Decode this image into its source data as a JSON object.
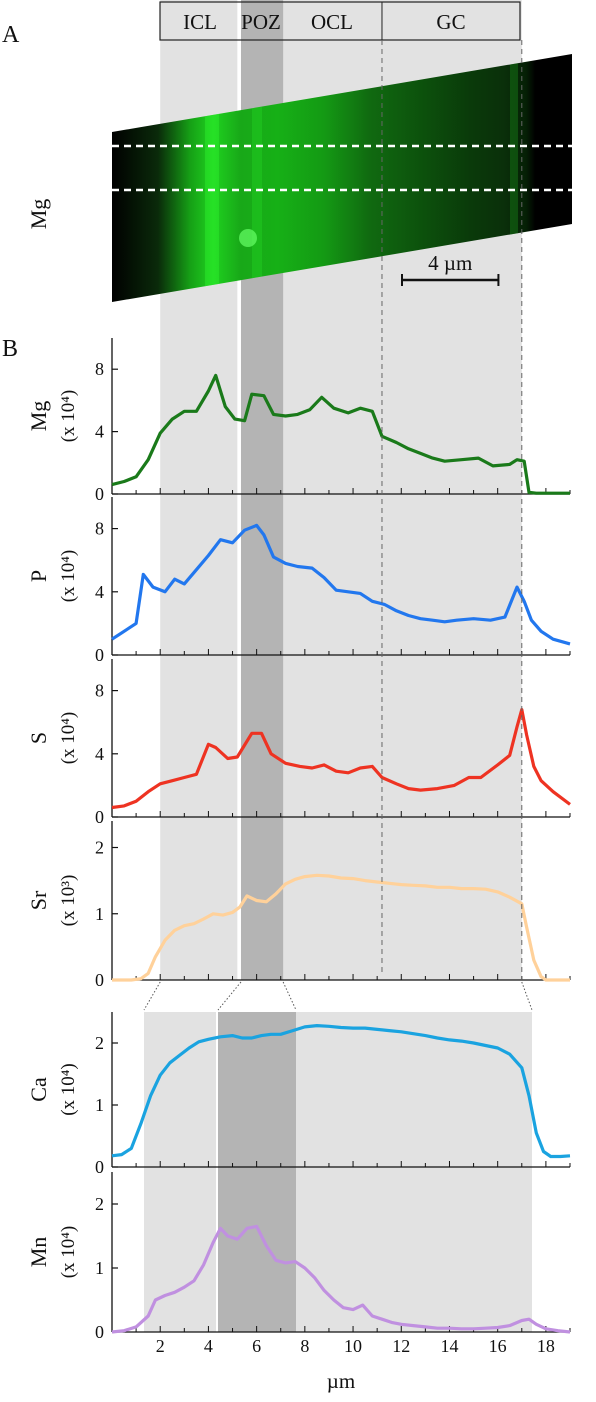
{
  "panel_a_label": "A",
  "panel_b_label": "B",
  "zones": [
    {
      "name": "ICL",
      "x0": 2.0,
      "x1": 5.2
    },
    {
      "name": "POZ",
      "x0": 5.35,
      "x1": 7.1
    },
    {
      "name": "OCL",
      "x0": 7.1,
      "x1": 11.2
    },
    {
      "name": "GC",
      "x0": 11.2,
      "x1": 17.0
    }
  ],
  "map": {
    "element": "Mg",
    "scalebar_label": "4 µm",
    "scalebar_um": 4,
    "color": "#1fcc1f"
  },
  "chart_data": [
    {
      "type": "line",
      "ylabel": "Mg",
      "yunit": "(x 10⁴)",
      "color": "#1a7a1a",
      "xlim": [
        0,
        19
      ],
      "ylim": [
        0,
        10
      ],
      "yticks": [
        0,
        4,
        8
      ],
      "shading": "upper",
      "x": [
        0,
        0.5,
        1,
        1.5,
        2,
        2.5,
        3,
        3.5,
        4,
        4.3,
        4.7,
        5.1,
        5.5,
        5.8,
        6.3,
        6.7,
        7.2,
        7.7,
        8.2,
        8.7,
        9.2,
        9.8,
        10.3,
        10.8,
        11.2,
        11.8,
        12.3,
        12.8,
        13.3,
        13.8,
        14.5,
        15.2,
        15.8,
        16.5,
        16.8,
        17.1,
        17.3,
        17.6,
        18,
        18.5,
        19
      ],
      "y": [
        0.6,
        0.8,
        1.1,
        2.2,
        3.9,
        4.8,
        5.3,
        5.3,
        6.6,
        7.6,
        5.6,
        4.8,
        4.7,
        6.4,
        6.3,
        5.1,
        5.0,
        5.1,
        5.4,
        6.2,
        5.5,
        5.2,
        5.5,
        5.3,
        3.7,
        3.3,
        2.9,
        2.6,
        2.3,
        2.1,
        2.2,
        2.3,
        1.8,
        1.9,
        2.2,
        2.1,
        0.1,
        0.05,
        0.05,
        0.05,
        0.05
      ]
    },
    {
      "type": "line",
      "ylabel": "P",
      "yunit": "(x 10⁴)",
      "color": "#2277ee",
      "xlim": [
        0,
        19
      ],
      "ylim": [
        0,
        10
      ],
      "yticks": [
        0,
        4,
        8
      ],
      "shading": "upper",
      "x": [
        0,
        0.5,
        1,
        1.3,
        1.7,
        2.2,
        2.6,
        3,
        3.5,
        4,
        4.5,
        5,
        5.5,
        6,
        6.3,
        6.7,
        7.2,
        7.7,
        8.3,
        8.8,
        9.3,
        9.8,
        10.3,
        10.8,
        11.3,
        11.8,
        12.3,
        12.8,
        13.3,
        13.8,
        14.3,
        15,
        15.7,
        16.3,
        16.8,
        17.1,
        17.4,
        17.8,
        18.3,
        19
      ],
      "y": [
        1.0,
        1.5,
        2.0,
        5.1,
        4.3,
        4.0,
        4.8,
        4.5,
        5.4,
        6.3,
        7.3,
        7.1,
        7.9,
        8.2,
        7.6,
        6.2,
        5.8,
        5.6,
        5.5,
        4.9,
        4.1,
        4.0,
        3.9,
        3.4,
        3.2,
        2.8,
        2.5,
        2.3,
        2.2,
        2.1,
        2.2,
        2.3,
        2.2,
        2.4,
        4.3,
        3.4,
        2.2,
        1.5,
        1.0,
        0.7
      ]
    },
    {
      "type": "line",
      "ylabel": "S",
      "yunit": "(x 10⁴)",
      "color": "#ee3322",
      "xlim": [
        0,
        19
      ],
      "ylim": [
        0,
        10
      ],
      "yticks": [
        0,
        4,
        8
      ],
      "shading": "upper",
      "x": [
        0,
        0.5,
        1,
        1.5,
        2,
        2.5,
        3,
        3.5,
        4,
        4.3,
        4.8,
        5.2,
        5.8,
        6.2,
        6.6,
        7.2,
        7.8,
        8.3,
        8.8,
        9.3,
        9.8,
        10.3,
        10.8,
        11.2,
        11.8,
        12.3,
        12.8,
        13.5,
        14.2,
        14.8,
        15.3,
        16,
        16.5,
        16.8,
        17,
        17.2,
        17.5,
        17.8,
        18.3,
        19
      ],
      "y": [
        0.6,
        0.7,
        1.0,
        1.6,
        2.1,
        2.3,
        2.5,
        2.7,
        4.6,
        4.4,
        3.7,
        3.8,
        5.3,
        5.3,
        4.0,
        3.4,
        3.2,
        3.1,
        3.3,
        2.9,
        2.8,
        3.1,
        3.2,
        2.5,
        2.1,
        1.8,
        1.7,
        1.8,
        2.0,
        2.5,
        2.5,
        3.3,
        3.9,
        5.7,
        6.8,
        5.2,
        3.2,
        2.3,
        1.6,
        0.8
      ]
    },
    {
      "type": "line",
      "ylabel": "Sr",
      "yunit": "(x 10³)",
      "color": "#ffd19a",
      "xlim": [
        0,
        19
      ],
      "ylim": [
        0,
        2.4
      ],
      "yticks": [
        0,
        1,
        2
      ],
      "shading": "upper",
      "x": [
        0,
        0.8,
        1.2,
        1.5,
        1.8,
        2.2,
        2.6,
        3,
        3.4,
        3.8,
        4.2,
        4.6,
        5,
        5.3,
        5.6,
        6,
        6.4,
        6.8,
        7.2,
        7.6,
        8,
        8.5,
        9,
        9.5,
        10,
        10.5,
        11,
        11.5,
        12,
        12.5,
        13,
        13.5,
        14,
        14.5,
        15,
        15.5,
        16,
        16.5,
        17,
        17.2,
        17.5,
        17.8,
        18,
        19
      ],
      "y": [
        0,
        0,
        0.02,
        0.1,
        0.35,
        0.6,
        0.75,
        0.82,
        0.85,
        0.92,
        1.0,
        0.98,
        1.02,
        1.1,
        1.27,
        1.2,
        1.18,
        1.3,
        1.45,
        1.52,
        1.56,
        1.58,
        1.57,
        1.54,
        1.53,
        1.5,
        1.48,
        1.46,
        1.44,
        1.43,
        1.42,
        1.4,
        1.4,
        1.38,
        1.38,
        1.37,
        1.33,
        1.25,
        1.15,
        0.8,
        0.3,
        0.05,
        0,
        0
      ]
    },
    {
      "type": "line",
      "ylabel": "Ca",
      "yunit": "(x 10⁴)",
      "color": "#1aa3e0",
      "xlim": [
        0,
        19
      ],
      "ylim": [
        0,
        2.5
      ],
      "yticks": [
        0,
        1,
        2
      ],
      "shading": "lower",
      "x": [
        0,
        0.4,
        0.8,
        1.2,
        1.6,
        2,
        2.4,
        2.8,
        3.2,
        3.6,
        4,
        4.5,
        5,
        5.4,
        5.8,
        6.2,
        6.6,
        7,
        7.5,
        8,
        8.5,
        9,
        9.5,
        10,
        10.5,
        11,
        11.5,
        12,
        12.5,
        13,
        13.5,
        14,
        14.5,
        15,
        15.5,
        16,
        16.5,
        17,
        17.3,
        17.6,
        17.9,
        18.2,
        18.6,
        19
      ],
      "y": [
        0.18,
        0.2,
        0.3,
        0.7,
        1.15,
        1.48,
        1.68,
        1.8,
        1.92,
        2.02,
        2.06,
        2.1,
        2.12,
        2.08,
        2.08,
        2.12,
        2.14,
        2.14,
        2.2,
        2.26,
        2.28,
        2.27,
        2.25,
        2.24,
        2.24,
        2.22,
        2.2,
        2.18,
        2.15,
        2.12,
        2.08,
        2.05,
        2.03,
        2.0,
        1.96,
        1.92,
        1.82,
        1.6,
        1.15,
        0.55,
        0.25,
        0.17,
        0.17,
        0.18
      ]
    },
    {
      "type": "line",
      "ylabel": "Mn",
      "yunit": "(x 10⁴)",
      "color": "#c090e0",
      "xlim": [
        0,
        19
      ],
      "ylim": [
        0,
        2.5
      ],
      "yticks": [
        0,
        1,
        2
      ],
      "shading": "lower",
      "x": [
        0,
        0.5,
        1,
        1.5,
        1.8,
        2.2,
        2.6,
        3,
        3.4,
        3.8,
        4.2,
        4.5,
        4.8,
        5.2,
        5.6,
        6,
        6.4,
        6.8,
        7.2,
        7.6,
        8,
        8.4,
        8.8,
        9.2,
        9.6,
        10,
        10.4,
        10.8,
        11.2,
        11.6,
        12,
        12.5,
        13,
        13.5,
        14,
        14.5,
        15,
        15.5,
        16,
        16.5,
        17,
        17.3,
        17.6,
        18,
        18.5,
        19
      ],
      "y": [
        0,
        0.02,
        0.08,
        0.25,
        0.5,
        0.57,
        0.62,
        0.7,
        0.8,
        1.05,
        1.4,
        1.62,
        1.5,
        1.45,
        1.62,
        1.65,
        1.35,
        1.12,
        1.08,
        1.1,
        1.0,
        0.85,
        0.65,
        0.5,
        0.38,
        0.35,
        0.42,
        0.25,
        0.2,
        0.15,
        0.12,
        0.1,
        0.08,
        0.06,
        0.06,
        0.05,
        0.05,
        0.06,
        0.07,
        0.1,
        0.18,
        0.2,
        0.12,
        0.05,
        0.02,
        0
      ]
    }
  ],
  "x_axis": {
    "label": "µm",
    "ticks": [
      2,
      4,
      6,
      8,
      10,
      12,
      14,
      16,
      18
    ]
  }
}
